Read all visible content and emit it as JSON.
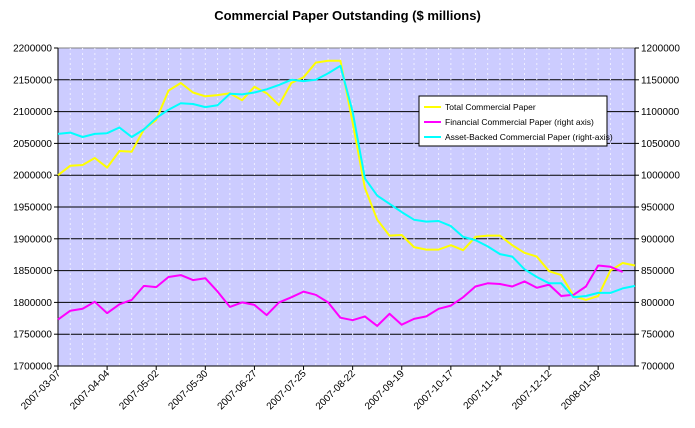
{
  "chart_data": {
    "type": "line",
    "title": "Commercial Paper Outstanding ($ millions)",
    "xlabel": "",
    "ylabel_left": "",
    "ylabel_right": "",
    "x_tick_labels": [
      "2007-03-07",
      "2007-04-04",
      "2007-05-02",
      "2007-05-30",
      "2007-06-27",
      "2007-07-25",
      "2007-08-22",
      "2007-09-19",
      "2007-10-17",
      "2007-11-14",
      "2007-12-12",
      "2008-01-09"
    ],
    "x_range": [
      "2007-03-07",
      "2008-01-30"
    ],
    "y_left": {
      "range": [
        1700000,
        2200000
      ],
      "step": 50000,
      "ticks": [
        "1700000",
        "1750000",
        "1800000",
        "1850000",
        "1900000",
        "1950000",
        "2000000",
        "2050000",
        "2100000",
        "2150000",
        "2200000"
      ]
    },
    "y_right": {
      "range": [
        700000,
        1200000
      ],
      "step": 50000,
      "ticks": [
        "700000",
        "750000",
        "800000",
        "850000",
        "900000",
        "950000",
        "1000000",
        "1050000",
        "1100000",
        "1150000",
        "1200000"
      ]
    },
    "grid": true,
    "plot_background": "#ccccff",
    "legend_placement": "right, upper-middle inside plot",
    "series": [
      {
        "name": "Total Commercial Paper",
        "axis": "left",
        "color": "#ffff00",
        "points": [
          [
            "2007-03-07",
            2000000
          ],
          [
            "2007-03-14",
            2015000
          ],
          [
            "2007-03-21",
            2016000
          ],
          [
            "2007-03-28",
            2027000
          ],
          [
            "2007-04-04",
            2012000
          ],
          [
            "2007-04-11",
            2038000
          ],
          [
            "2007-04-18",
            2037000
          ],
          [
            "2007-04-25",
            2072000
          ],
          [
            "2007-05-02",
            2087000
          ],
          [
            "2007-05-09",
            2133000
          ],
          [
            "2007-05-16",
            2145000
          ],
          [
            "2007-05-23",
            2130000
          ],
          [
            "2007-05-30",
            2124000
          ],
          [
            "2007-06-06",
            2126000
          ],
          [
            "2007-06-13",
            2129000
          ],
          [
            "2007-06-20",
            2118000
          ],
          [
            "2007-06-27",
            2139000
          ],
          [
            "2007-07-04",
            2129000
          ],
          [
            "2007-07-11",
            2110000
          ],
          [
            "2007-07-18",
            2145000
          ],
          [
            "2007-07-25",
            2154000
          ],
          [
            "2007-08-01",
            2177000
          ],
          [
            "2007-08-08",
            2180000
          ],
          [
            "2007-08-15",
            2180000
          ],
          [
            "2007-08-22",
            2083000
          ],
          [
            "2007-08-29",
            1980000
          ],
          [
            "2007-09-05",
            1930000
          ],
          [
            "2007-09-12",
            1905000
          ],
          [
            "2007-09-19",
            1906000
          ],
          [
            "2007-09-26",
            1887000
          ],
          [
            "2007-10-03",
            1883000
          ],
          [
            "2007-10-10",
            1883000
          ],
          [
            "2007-10-17",
            1890000
          ],
          [
            "2007-10-24",
            1882000
          ],
          [
            "2007-10-31",
            1903000
          ],
          [
            "2007-11-07",
            1905000
          ],
          [
            "2007-11-14",
            1905000
          ],
          [
            "2007-11-21",
            1890000
          ],
          [
            "2007-11-28",
            1878000
          ],
          [
            "2007-12-05",
            1872000
          ],
          [
            "2007-12-12",
            1849000
          ],
          [
            "2007-12-19",
            1843000
          ],
          [
            "2007-12-26",
            1810000
          ],
          [
            "2008-01-02",
            1804000
          ],
          [
            "2008-01-09",
            1810000
          ],
          [
            "2008-01-16",
            1850000
          ],
          [
            "2008-01-23",
            1862000
          ],
          [
            "2008-01-30",
            1858000
          ]
        ]
      },
      {
        "name": "Financial Commercial Paper (right axis)",
        "axis": "right",
        "color": "#ff00ff",
        "points": [
          [
            "2007-03-07",
            773000
          ],
          [
            "2007-03-14",
            787000
          ],
          [
            "2007-03-21",
            790000
          ],
          [
            "2007-03-28",
            801000
          ],
          [
            "2007-04-04",
            783000
          ],
          [
            "2007-04-11",
            797000
          ],
          [
            "2007-04-18",
            804000
          ],
          [
            "2007-04-25",
            826000
          ],
          [
            "2007-05-02",
            824000
          ],
          [
            "2007-05-09",
            840000
          ],
          [
            "2007-05-16",
            843000
          ],
          [
            "2007-05-23",
            835000
          ],
          [
            "2007-05-30",
            838000
          ],
          [
            "2007-06-06",
            817000
          ],
          [
            "2007-06-13",
            793000
          ],
          [
            "2007-06-20",
            800000
          ],
          [
            "2007-06-27",
            796000
          ],
          [
            "2007-07-04",
            780000
          ],
          [
            "2007-07-11",
            800000
          ],
          [
            "2007-07-18",
            808000
          ],
          [
            "2007-07-25",
            817000
          ],
          [
            "2007-08-01",
            812000
          ],
          [
            "2007-08-08",
            800000
          ],
          [
            "2007-08-15",
            776000
          ],
          [
            "2007-08-22",
            772000
          ],
          [
            "2007-08-29",
            778000
          ],
          [
            "2007-09-05",
            763000
          ],
          [
            "2007-09-12",
            782000
          ],
          [
            "2007-09-19",
            765000
          ],
          [
            "2007-09-26",
            774000
          ],
          [
            "2007-10-03",
            778000
          ],
          [
            "2007-10-10",
            790000
          ],
          [
            "2007-10-17",
            795000
          ],
          [
            "2007-10-24",
            808000
          ],
          [
            "2007-10-31",
            825000
          ],
          [
            "2007-11-07",
            830000
          ],
          [
            "2007-11-14",
            829000
          ],
          [
            "2007-11-21",
            825000
          ],
          [
            "2007-11-28",
            833000
          ],
          [
            "2007-12-05",
            823000
          ],
          [
            "2007-12-12",
            828000
          ],
          [
            "2007-12-19",
            810000
          ],
          [
            "2007-12-26",
            812000
          ],
          [
            "2008-01-02",
            825000
          ],
          [
            "2008-01-09",
            858000
          ],
          [
            "2008-01-16",
            856000
          ],
          [
            "2008-01-23",
            848000
          ]
        ]
      },
      {
        "name": "Asset-Backed Commercial Paper (right-axis)",
        "axis": "right",
        "color": "#00ffff",
        "points": [
          [
            "2007-03-07",
            1065000
          ],
          [
            "2007-03-14",
            1067000
          ],
          [
            "2007-03-21",
            1060000
          ],
          [
            "2007-03-28",
            1065000
          ],
          [
            "2007-04-04",
            1066000
          ],
          [
            "2007-04-11",
            1075000
          ],
          [
            "2007-04-18",
            1060000
          ],
          [
            "2007-04-25",
            1072000
          ],
          [
            "2007-05-02",
            1090000
          ],
          [
            "2007-05-09",
            1103000
          ],
          [
            "2007-05-16",
            1113000
          ],
          [
            "2007-05-23",
            1112000
          ],
          [
            "2007-05-30",
            1107000
          ],
          [
            "2007-06-06",
            1110000
          ],
          [
            "2007-06-13",
            1128000
          ],
          [
            "2007-06-20",
            1127000
          ],
          [
            "2007-06-27",
            1130000
          ],
          [
            "2007-07-04",
            1135000
          ],
          [
            "2007-07-11",
            1142000
          ],
          [
            "2007-07-18",
            1150000
          ],
          [
            "2007-07-25",
            1148000
          ],
          [
            "2007-08-01",
            1150000
          ],
          [
            "2007-08-08",
            1160000
          ],
          [
            "2007-08-15",
            1172000
          ],
          [
            "2007-08-22",
            1100000
          ],
          [
            "2007-08-29",
            995000
          ],
          [
            "2007-09-05",
            968000
          ],
          [
            "2007-09-12",
            955000
          ],
          [
            "2007-09-19",
            942000
          ],
          [
            "2007-09-26",
            930000
          ],
          [
            "2007-10-03",
            927000
          ],
          [
            "2007-10-10",
            928000
          ],
          [
            "2007-10-17",
            920000
          ],
          [
            "2007-10-24",
            903000
          ],
          [
            "2007-10-31",
            898000
          ],
          [
            "2007-11-07",
            888000
          ],
          [
            "2007-11-14",
            876000
          ],
          [
            "2007-11-21",
            872000
          ],
          [
            "2007-11-28",
            852000
          ],
          [
            "2007-12-05",
            840000
          ],
          [
            "2007-12-12",
            830000
          ],
          [
            "2007-12-19",
            830000
          ],
          [
            "2007-12-26",
            808000
          ],
          [
            "2008-01-02",
            810000
          ],
          [
            "2008-01-09",
            815000
          ],
          [
            "2008-01-16",
            815000
          ],
          [
            "2008-01-23",
            822000
          ],
          [
            "2008-01-30",
            826000
          ]
        ]
      }
    ]
  }
}
